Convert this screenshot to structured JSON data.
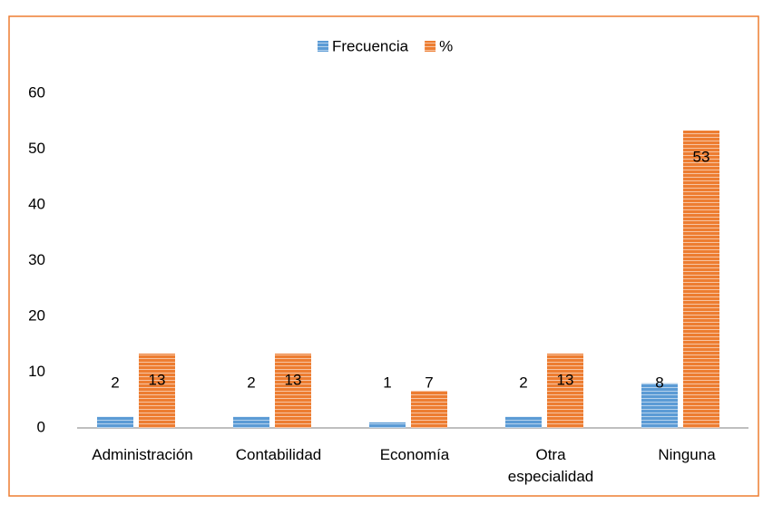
{
  "chart_data": {
    "type": "bar",
    "categories": [
      "Administración",
      "Contabilidad",
      "Economía",
      "Otra especialidad",
      "Ninguna"
    ],
    "series": [
      {
        "name": "Frecuencia",
        "color": "#5b9bd5",
        "values": [
          2,
          2,
          1,
          2,
          8
        ]
      },
      {
        "name": "%",
        "color": "#ed7d31",
        "values": [
          13.33,
          13.33,
          6.67,
          13.33,
          53.33
        ],
        "value_labels": [
          "13",
          "13",
          "7",
          "13",
          "53"
        ]
      }
    ],
    "ylim": [
      0,
      60
    ],
    "yticks": [
      0,
      10,
      20,
      30,
      40,
      50,
      60
    ],
    "grid": false,
    "legend": "top"
  }
}
